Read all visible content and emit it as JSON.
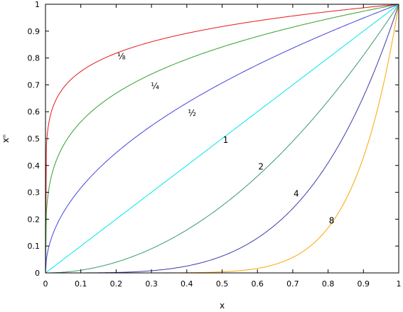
{
  "chart_data": {
    "type": "line",
    "xlabel": "x",
    "ylabel": "xⁿ",
    "xlim": [
      0,
      1
    ],
    "ylim": [
      0,
      1
    ],
    "xticks": [
      "0",
      "0.1",
      "0.2",
      "0.3",
      "0.4",
      "0.5",
      "0.6",
      "0.7",
      "0.8",
      "0.9",
      "1"
    ],
    "yticks": [
      "0",
      "0.1",
      "0.2",
      "0.3",
      "0.4",
      "0.5",
      "0.6",
      "0.7",
      "0.8",
      "0.9",
      "1"
    ],
    "grid": false,
    "legend": "none",
    "x": [
      0,
      0.0001,
      0.001,
      0.005,
      0.01,
      0.02,
      0.03,
      0.05,
      0.075,
      0.1,
      0.15,
      0.2,
      0.25,
      0.3,
      0.35,
      0.4,
      0.45,
      0.5,
      0.55,
      0.6,
      0.65,
      0.7,
      0.75,
      0.8,
      0.85,
      0.9,
      0.95,
      1
    ],
    "series": [
      {
        "label": "⅛",
        "exponent": 0.125,
        "color": "#e31a1c",
        "label_at": [
          0.215,
          0.805
        ],
        "values": [
          0,
          0.316,
          0.422,
          0.516,
          0.562,
          0.613,
          0.645,
          0.688,
          0.723,
          0.75,
          0.789,
          0.818,
          0.841,
          0.86,
          0.877,
          0.892,
          0.905,
          0.917,
          0.928,
          0.938,
          0.948,
          0.956,
          0.965,
          0.972,
          0.98,
          0.987,
          0.994,
          1
        ]
      },
      {
        "label": "¼",
        "exponent": 0.25,
        "color": "#33a02c",
        "label_at": [
          0.31,
          0.695
        ],
        "values": [
          0,
          0.1,
          0.178,
          0.266,
          0.316,
          0.376,
          0.416,
          0.473,
          0.523,
          0.562,
          0.622,
          0.669,
          0.707,
          0.74,
          0.769,
          0.795,
          0.819,
          0.841,
          0.861,
          0.88,
          0.898,
          0.915,
          0.931,
          0.946,
          0.96,
          0.974,
          0.987,
          1
        ]
      },
      {
        "label": "½",
        "exponent": 0.5,
        "color": "#4444dd",
        "label_at": [
          0.415,
          0.595
        ],
        "values": [
          0,
          0.01,
          0.032,
          0.071,
          0.1,
          0.141,
          0.173,
          0.224,
          0.274,
          0.316,
          0.387,
          0.447,
          0.5,
          0.548,
          0.592,
          0.632,
          0.671,
          0.707,
          0.742,
          0.775,
          0.806,
          0.837,
          0.866,
          0.894,
          0.922,
          0.949,
          0.975,
          1
        ]
      },
      {
        "label": "1",
        "exponent": 1,
        "color": "#00e5ee",
        "label_at": [
          0.51,
          0.495
        ],
        "values": [
          0,
          0.0001,
          0.001,
          0.005,
          0.01,
          0.02,
          0.03,
          0.05,
          0.075,
          0.1,
          0.15,
          0.2,
          0.25,
          0.3,
          0.35,
          0.4,
          0.45,
          0.5,
          0.55,
          0.6,
          0.65,
          0.7,
          0.75,
          0.8,
          0.85,
          0.9,
          0.95,
          1
        ]
      },
      {
        "label": "2",
        "exponent": 2,
        "color": "#3a9a6e",
        "label_at": [
          0.61,
          0.395
        ],
        "values": [
          0,
          0,
          0,
          0,
          0.0001,
          0.0004,
          0.0009,
          0.0025,
          0.0056,
          0.01,
          0.0225,
          0.04,
          0.0625,
          0.09,
          0.1225,
          0.16,
          0.2025,
          0.25,
          0.3025,
          0.36,
          0.4225,
          0.49,
          0.5625,
          0.64,
          0.7225,
          0.81,
          0.9025,
          1
        ]
      },
      {
        "label": "4",
        "exponent": 4,
        "color": "#3c3caa",
        "label_at": [
          0.71,
          0.295
        ],
        "values": [
          0,
          0,
          0,
          0,
          0,
          0,
          0,
          0,
          0,
          0.0001,
          0.0005,
          0.0016,
          0.0039,
          0.0081,
          0.015,
          0.0256,
          0.041,
          0.0625,
          0.0915,
          0.1296,
          0.1785,
          0.2401,
          0.3164,
          0.4096,
          0.522,
          0.6561,
          0.8145,
          1
        ]
      },
      {
        "label": "8",
        "exponent": 8,
        "color": "#ffa500",
        "label_at": [
          0.81,
          0.195
        ],
        "values": [
          0,
          0,
          0,
          0,
          0,
          0,
          0,
          0,
          0,
          0,
          0,
          0,
          0,
          0.0001,
          0.0002,
          0.0007,
          0.0017,
          0.0039,
          0.0084,
          0.0168,
          0.0319,
          0.0576,
          0.1001,
          0.1678,
          0.2725,
          0.4305,
          0.6634,
          1
        ]
      }
    ]
  }
}
